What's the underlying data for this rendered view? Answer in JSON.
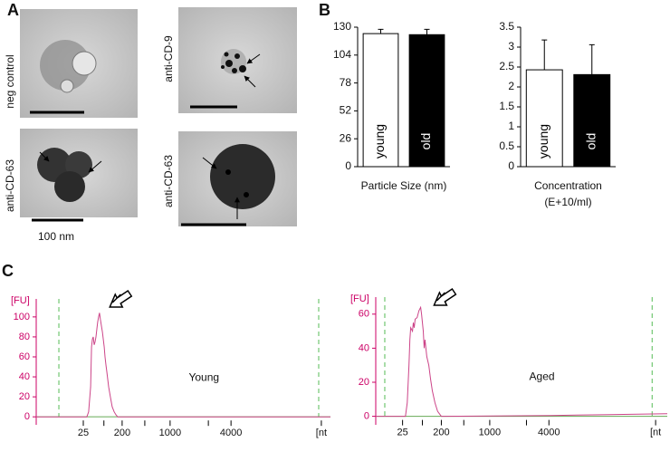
{
  "panel_labels": [
    "A",
    "B",
    "C"
  ],
  "images": [
    {
      "label": "neg control"
    },
    {
      "label": "anti-CD-9"
    },
    {
      "label": "anti-CD-63"
    },
    {
      "label": "anti-CD-63"
    }
  ],
  "scale_bar": "100 nm",
  "chart_data": [
    {
      "type": "bar",
      "xlabel": [
        "Particle Size (nm)"
      ],
      "categories": [
        "young",
        "old"
      ],
      "values": [
        124,
        123
      ],
      "errors": [
        4,
        5
      ],
      "colors": [
        "#ffffff",
        "#000000"
      ],
      "ylim": [
        0,
        130
      ],
      "yticks": [
        0,
        26,
        52,
        78,
        104,
        130
      ]
    },
    {
      "type": "bar",
      "xlabel": [
        "Concentration",
        "(E+10/ml)"
      ],
      "categories": [
        "young",
        "old"
      ],
      "values": [
        2.43,
        2.31
      ],
      "errors": [
        0.75,
        0.75
      ],
      "colors": [
        "#ffffff",
        "#000000"
      ],
      "ylim": [
        0,
        3.5
      ],
      "yticks": [
        0,
        0.5,
        1,
        1.5,
        2,
        2.5,
        3,
        3.5
      ]
    },
    {
      "type": "line",
      "ylabel": "[FU]",
      "annotation": "Young",
      "color": "#cc4488",
      "x": [
        0,
        17.2,
        17.8,
        18.5,
        18.8,
        19.1,
        19.4,
        19.7,
        20,
        20.3,
        20.6,
        20.9,
        21.2,
        21.5,
        21.8,
        22.2,
        22.5,
        23.1,
        23.4,
        23.7,
        24,
        24.6,
        25.2,
        25.8,
        26.5,
        27.1,
        27.7,
        100
      ],
      "values": [
        0,
        0,
        5,
        30,
        70,
        78,
        80,
        72,
        75,
        80,
        88,
        95,
        100,
        104,
        98,
        90,
        85,
        70,
        60,
        52,
        45,
        30,
        20,
        10,
        5,
        2,
        0,
        0
      ],
      "reference_lines_x": [
        7.7,
        96
      ],
      "xlim": [
        0,
        100
      ],
      "xticks": [
        {
          "value": 16,
          "label": "25"
        },
        {
          "value": 23,
          "label": ""
        },
        {
          "value": 29.2,
          "label": "200"
        },
        {
          "value": 36.9,
          "label": ""
        },
        {
          "value": 45.5,
          "label": "1000"
        },
        {
          "value": 58.5,
          "label": ""
        },
        {
          "value": 66.2,
          "label": "4000"
        },
        {
          "value": 96.9,
          "label": "[nt"
        }
      ],
      "ylim": [
        -8,
        118
      ],
      "yticks": [
        0,
        20,
        40,
        60,
        80,
        100
      ]
    },
    {
      "type": "line",
      "ylabel": "[FU]",
      "annotation": "Aged",
      "color": "#cc4488",
      "x": [
        0,
        10.2,
        10.8,
        11.4,
        11.7,
        12,
        12.6,
        12.9,
        13.2,
        13.5,
        14.2,
        14.8,
        15.4,
        15.7,
        16.3,
        16.6,
        16.9,
        17.5,
        18.2,
        18.8,
        19.4,
        20.3,
        21.2,
        22.5,
        60,
        80,
        100
      ],
      "values": [
        0,
        0,
        8,
        30,
        45,
        52,
        50,
        55,
        52,
        57,
        58,
        62,
        64,
        60,
        50,
        40,
        45,
        35,
        30,
        22,
        15,
        8,
        3,
        0,
        0.5,
        1,
        1.5
      ],
      "reference_lines_x": [
        3.1,
        94.8
      ],
      "xlim": [
        0,
        100
      ],
      "xticks": [
        {
          "value": 9.2,
          "label": "25"
        },
        {
          "value": 16,
          "label": ""
        },
        {
          "value": 22.5,
          "label": "200"
        },
        {
          "value": 30.2,
          "label": ""
        },
        {
          "value": 39.1,
          "label": "1000"
        },
        {
          "value": 51.7,
          "label": ""
        },
        {
          "value": 59.4,
          "label": "4000"
        },
        {
          "value": 96,
          "label": "[nt"
        }
      ],
      "ylim": [
        -5,
        70
      ],
      "yticks": [
        0,
        20,
        40,
        60
      ]
    }
  ]
}
